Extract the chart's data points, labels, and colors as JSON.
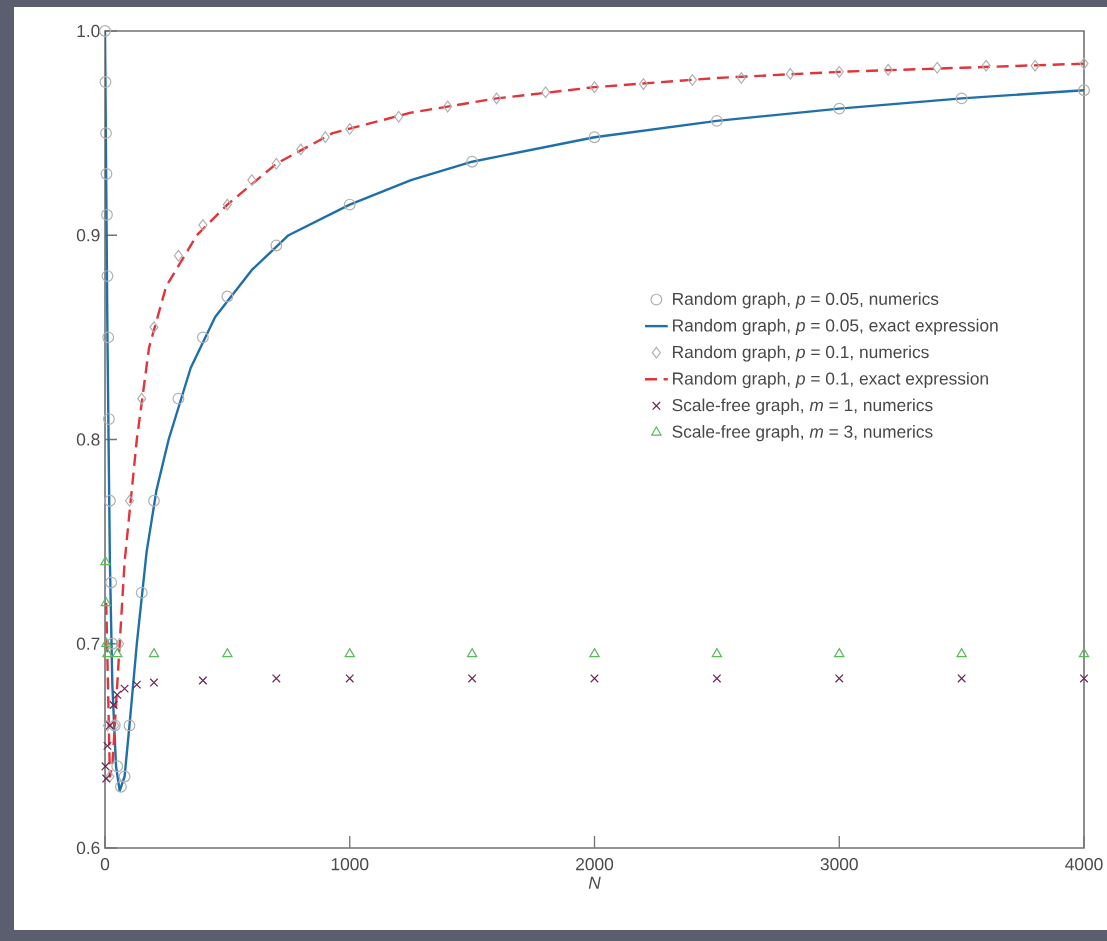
{
  "chart_data": {
    "type": "scatter",
    "xlabel": "N",
    "xlim": [
      0,
      4000
    ],
    "ylim": [
      0.6,
      1.0
    ],
    "xticks": [
      0,
      1000,
      2000,
      3000,
      4000
    ],
    "yticks": [
      0.6,
      0.7,
      0.8,
      0.9,
      {
        "value": 1.0,
        "label": "1.0"
      }
    ],
    "grid": false,
    "legend": "right",
    "series": [
      {
        "name": "Random graph, *p* = 0.05, numerics",
        "marker": "circle",
        "color": "#b0b0b0",
        "x": [
          0,
          2,
          4,
          6,
          8,
          10,
          13,
          16,
          20,
          25,
          30,
          40,
          50,
          65,
          80,
          100,
          150,
          200,
          300,
          400,
          500,
          700,
          1000,
          1500,
          2000,
          2500,
          3000,
          3500,
          4000
        ],
        "values": [
          1.0,
          0.975,
          0.95,
          0.93,
          0.91,
          0.88,
          0.85,
          0.81,
          0.77,
          0.73,
          0.7,
          0.66,
          0.64,
          0.63,
          0.635,
          0.66,
          0.725,
          0.77,
          0.82,
          0.85,
          0.87,
          0.895,
          0.915,
          0.936,
          0.948,
          0.956,
          0.962,
          0.967,
          0.971
        ]
      },
      {
        "name": "Random graph, *p* = 0.05, exact expression",
        "type": "line",
        "line_style": "solid",
        "color": "#1f6fa8",
        "x": [
          0,
          10,
          20,
          30,
          45,
          60,
          80,
          100,
          130,
          170,
          210,
          260,
          350,
          450,
          600,
          750,
          1000,
          1250,
          1500,
          2000,
          2500,
          3000,
          3500,
          4000
        ],
        "values": [
          1.0,
          0.85,
          0.74,
          0.68,
          0.64,
          0.628,
          0.635,
          0.66,
          0.7,
          0.745,
          0.775,
          0.8,
          0.835,
          0.86,
          0.883,
          0.9,
          0.915,
          0.927,
          0.936,
          0.948,
          0.956,
          0.962,
          0.967,
          0.971
        ]
      },
      {
        "name": "Random graph, *p* = 0.1, numerics",
        "marker": "diamond",
        "color": "#b0b0b0",
        "x": [
          10,
          20,
          40,
          60,
          100,
          150,
          200,
          300,
          400,
          500,
          600,
          700,
          800,
          900,
          1000,
          1200,
          1400,
          1600,
          1800,
          2000,
          2200,
          2400,
          2600,
          2800,
          3000,
          3200,
          3400,
          3600,
          3800,
          4000
        ],
        "values": [
          0.66,
          0.635,
          0.66,
          0.7,
          0.77,
          0.82,
          0.855,
          0.89,
          0.905,
          0.915,
          0.927,
          0.935,
          0.942,
          0.948,
          0.952,
          0.958,
          0.963,
          0.967,
          0.97,
          0.9725,
          0.974,
          0.976,
          0.977,
          0.979,
          0.98,
          0.981,
          0.982,
          0.983,
          0.983,
          0.984
        ]
      },
      {
        "name": "Random graph, *p* = 0.1, exact expression",
        "type": "line",
        "line_style": "dashed",
        "color": "#e0353a",
        "x": [
          5,
          12,
          20,
          30,
          50,
          80,
          130,
          180,
          250,
          375,
          500,
          700,
          930,
          1250,
          1600,
          2000,
          2500,
          3000,
          3500,
          4000
        ],
        "values": [
          0.72,
          0.68,
          0.635,
          0.64,
          0.68,
          0.74,
          0.8,
          0.845,
          0.875,
          0.9,
          0.915,
          0.935,
          0.95,
          0.96,
          0.967,
          0.9725,
          0.977,
          0.98,
          0.982,
          0.984
        ]
      },
      {
        "name": "Scale-free graph, *m* = 1, numerics",
        "marker": "cross",
        "color": "#6b2453",
        "x": [
          2,
          5,
          10,
          20,
          35,
          50,
          80,
          130,
          200,
          400,
          700,
          1000,
          1500,
          2000,
          2500,
          3000,
          3500,
          4000
        ],
        "values": [
          0.64,
          0.634,
          0.65,
          0.66,
          0.67,
          0.675,
          0.678,
          0.68,
          0.681,
          0.682,
          0.683,
          0.683,
          0.683,
          0.683,
          0.683,
          0.683,
          0.683,
          0.683
        ]
      },
      {
        "name": "Scale-free graph, *m* = 3, numerics",
        "marker": "triangle",
        "color": "#5cb85c",
        "x": [
          2,
          4,
          6,
          10,
          50,
          200,
          500,
          1000,
          1500,
          2000,
          2500,
          3000,
          3500,
          4000
        ],
        "values": [
          0.74,
          0.72,
          0.7,
          0.695,
          0.695,
          0.695,
          0.695,
          0.695,
          0.695,
          0.695,
          0.695,
          0.695,
          0.695,
          0.695
        ]
      }
    ]
  }
}
